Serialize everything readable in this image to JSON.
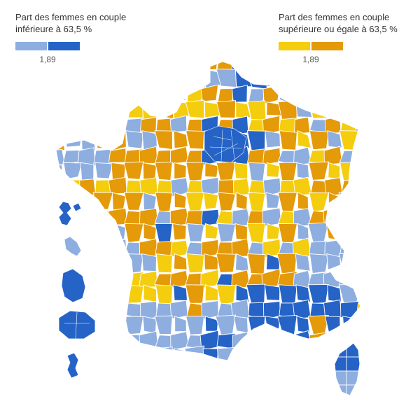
{
  "legend": {
    "low": {
      "title_line1": "Part des femmes en couple",
      "title_line2": "inférieure à 63,5 %",
      "tick": "1,89",
      "colors": [
        "#8eaee0",
        "#2563c6"
      ]
    },
    "high": {
      "title_line1": "Part des femmes en couple",
      "title_line2": "supérieure ou égale à 63,5 %",
      "tick": "1,89",
      "colors": [
        "#f5cd0f",
        "#e49a09"
      ]
    }
  },
  "map": {
    "colors": {
      "light_blue": "#8eaee0",
      "dark_blue": "#2563c6",
      "yellow": "#f5cd0f",
      "orange": "#e49a09",
      "border": "#ffffff"
    }
  }
}
